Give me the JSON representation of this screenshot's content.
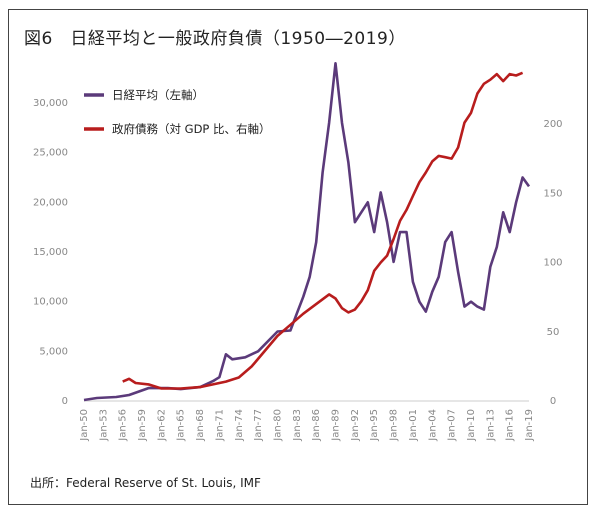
{
  "chart_data": {
    "type": "line",
    "title": "図6　日経平均と一般政府負債（1950―2019）",
    "source": "出所：Federal Reserve of St. Louis, IMF",
    "x_ticks": [
      "Jan-50",
      "Jan-53",
      "Jan-56",
      "Jan-59",
      "Jan-62",
      "Jan-65",
      "Jan-68",
      "Jan-71",
      "Jan-74",
      "Jan-77",
      "Jan-80",
      "Jan-83",
      "Jan-86",
      "Jan-89",
      "Jan-92",
      "Jan-95",
      "Jan-98",
      "Jan-01",
      "Jan-04",
      "Jan-07",
      "Jan-10",
      "Jan-13",
      "Jan-16",
      "Jan-19"
    ],
    "xlim": [
      1950,
      2019
    ],
    "y_left": {
      "ylim": [
        0,
        35000
      ],
      "ticks": [
        "0",
        "5,000",
        "10,000",
        "15,000",
        "20,000",
        "25,000",
        "30,000"
      ],
      "tick_values": [
        0,
        5000,
        10000,
        15000,
        20000,
        25000,
        30000
      ]
    },
    "y_right": {
      "ylim": [
        0,
        252
      ],
      "ticks": [
        "0",
        "50",
        "100",
        "150",
        "200"
      ],
      "tick_values": [
        0,
        50,
        100,
        150,
        200
      ]
    },
    "legend_position": "top-left",
    "series": [
      {
        "name": "日経平均（左軸）",
        "axis": "left",
        "color": "#5b3a7a",
        "x": [
          1950,
          1952,
          1955,
          1957,
          1960,
          1963,
          1965,
          1968,
          1970,
          1971,
          1972,
          1973,
          1975,
          1977,
          1980,
          1982,
          1983,
          1984,
          1985,
          1986,
          1987,
          1988,
          1989,
          1990,
          1991,
          1992,
          1993,
          1994,
          1995,
          1996,
          1997,
          1998,
          1999,
          2000,
          2001,
          2002,
          2003,
          2004,
          2005,
          2006,
          2007,
          2008,
          2009,
          2010,
          2011,
          2012,
          2013,
          2014,
          2015,
          2016,
          2017,
          2018,
          2019
        ],
        "values": [
          100,
          300,
          400,
          600,
          1300,
          1300,
          1200,
          1400,
          2000,
          2400,
          4700,
          4200,
          4400,
          5000,
          7000,
          7100,
          8800,
          10500,
          12500,
          16000,
          23000,
          28000,
          34000,
          28000,
          24000,
          18000,
          19000,
          20000,
          17000,
          21000,
          18000,
          14000,
          17000,
          17000,
          12000,
          10000,
          9000,
          11000,
          12500,
          16000,
          17000,
          13000,
          9500,
          10000,
          9500,
          9200,
          13500,
          15500,
          19000,
          17000,
          20000,
          22500,
          21600
        ]
      },
      {
        "name": "政府債務（対 GDP 比、右軸）",
        "axis": "right",
        "color": "#b81d1d",
        "x": [
          1956,
          1957,
          1958,
          1960,
          1962,
          1965,
          1968,
          1970,
          1972,
          1974,
          1976,
          1978,
          1980,
          1982,
          1984,
          1986,
          1988,
          1989,
          1990,
          1991,
          1992,
          1993,
          1994,
          1995,
          1996,
          1997,
          1998,
          1999,
          2000,
          2001,
          2002,
          2003,
          2004,
          2005,
          2006,
          2007,
          2008,
          2009,
          2010,
          2011,
          2012,
          2013,
          2014,
          2015,
          2016,
          2017,
          2018
        ],
        "values": [
          14,
          16,
          13,
          12,
          9,
          9,
          10,
          12,
          14,
          17,
          25,
          36,
          47,
          55,
          63,
          70,
          77,
          74,
          67,
          64,
          66,
          72,
          80,
          94,
          100,
          105,
          117,
          130,
          138,
          148,
          158,
          165,
          173,
          177,
          176,
          175,
          183,
          201,
          208,
          222,
          229,
          232,
          236,
          231,
          236,
          235,
          237
        ]
      }
    ]
  }
}
